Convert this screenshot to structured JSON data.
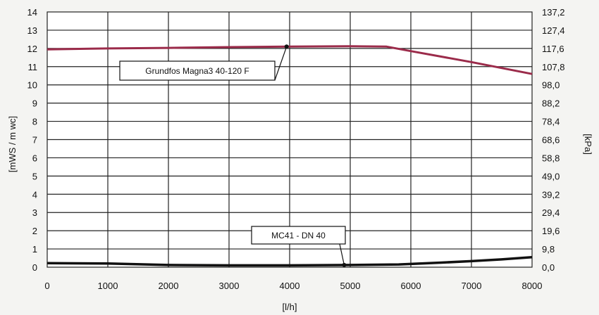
{
  "chart_data": {
    "type": "line",
    "xlabel": "[l/h]",
    "ylabel": "[mWS / m wc]",
    "y2label": "[kPa]",
    "xlim": [
      0,
      8000
    ],
    "ylim": [
      0,
      14
    ],
    "x_ticks": [
      "0",
      "1000",
      "2000",
      "3000",
      "4000",
      "5000",
      "6000",
      "7000",
      "8000"
    ],
    "y_ticks": [
      "0",
      "1",
      "2",
      "3",
      "4",
      "5",
      "6",
      "7",
      "8",
      "9",
      "10",
      "11",
      "12",
      "13",
      "14"
    ],
    "y2_ticks": [
      "0,0",
      "9,8",
      "19,6",
      "29,4",
      "39,2",
      "49,0",
      "58,8",
      "68,6",
      "78,4",
      "88,2",
      "98,0",
      "107,8",
      "117,6",
      "127,4",
      "137,2"
    ],
    "grid": true,
    "series": [
      {
        "name": "Grundfos Magna3 40-120 F",
        "color": "#9b2b4a",
        "x": [
          0,
          1000,
          2000,
          3000,
          4000,
          5000,
          5600,
          6000,
          7000,
          8000
        ],
        "y": [
          11.95,
          12.0,
          12.03,
          12.07,
          12.1,
          12.12,
          12.1,
          11.85,
          11.25,
          10.6
        ]
      },
      {
        "name": "MC41 - DN 40",
        "color": "#111111",
        "x": [
          0,
          1000,
          2000,
          3000,
          4000,
          5000,
          5800,
          6500,
          7000,
          7500,
          8000
        ],
        "y": [
          0.22,
          0.2,
          0.12,
          0.1,
          0.1,
          0.12,
          0.15,
          0.25,
          0.33,
          0.43,
          0.55
        ]
      }
    ],
    "annotations": [
      {
        "text": "Grundfos Magna3 40-120 F",
        "series": 0,
        "point_x": 3950,
        "point_y": 12.1
      },
      {
        "text": "MC41 - DN 40",
        "series": 1,
        "point_x": 4900,
        "point_y": 0.12
      }
    ]
  }
}
